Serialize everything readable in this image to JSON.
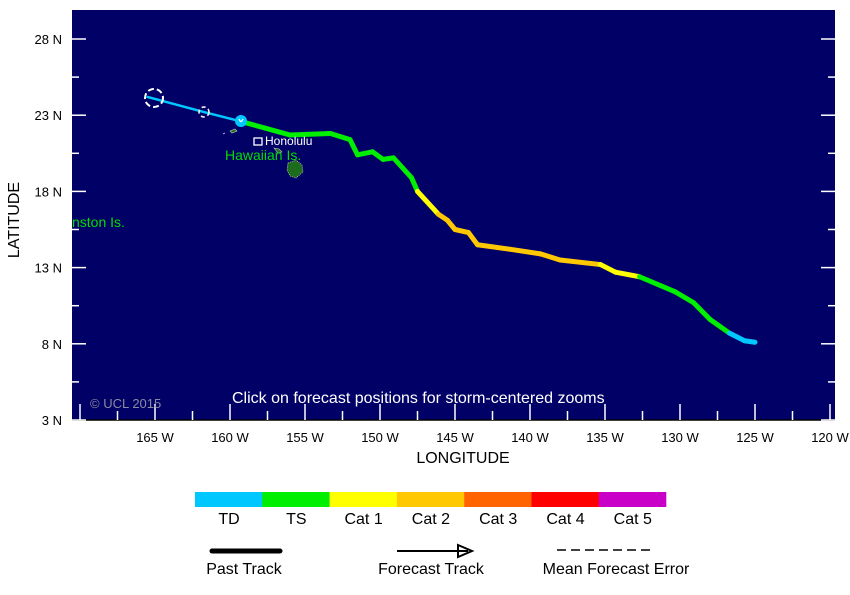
{
  "map": {
    "copyright": "© UCL 2015",
    "instruction": "Click on forecast positions for storm-centered zooms",
    "xlabel": "LONGITUDE",
    "ylabel": "LATITUDE",
    "lon_ticks": [
      {
        "v": 165,
        "t": "165 W"
      },
      {
        "v": 160,
        "t": "160 W"
      },
      {
        "v": 155,
        "t": "155 W"
      },
      {
        "v": 150,
        "t": "150 W"
      },
      {
        "v": 145,
        "t": "145 W"
      },
      {
        "v": 140,
        "t": "140 W"
      },
      {
        "v": 135,
        "t": "135 W"
      },
      {
        "v": 130,
        "t": "130 W"
      },
      {
        "v": 125,
        "t": "125 W"
      },
      {
        "v": 120,
        "t": "120 W"
      }
    ],
    "lat_ticks": [
      {
        "v": 28,
        "t": "28 N"
      },
      {
        "v": 23,
        "t": "23 N"
      },
      {
        "v": 18,
        "t": "18 N"
      },
      {
        "v": 13,
        "t": "13 N"
      },
      {
        "v": 8,
        "t": "8 N"
      },
      {
        "v": 3,
        "t": "3 N"
      }
    ],
    "labels": {
      "honolulu": "Honolulu",
      "hawaiian": "Hawaiian Is.",
      "johnston": "nston Is."
    },
    "colors": {
      "ocean": "#000066",
      "TD": "#00c8ff",
      "TS": "#00ee00",
      "Cat1": "#ffff00",
      "Cat2": "#ffc800",
      "Cat3": "#ff6400",
      "Cat4": "#ff0000",
      "Cat5": "#c800c8",
      "land_label": "#00dd00"
    },
    "track": [
      {
        "lon": 165.5,
        "lat": 24.2,
        "cat": "TD"
      },
      {
        "lon": 161.7,
        "lat": 23.2,
        "cat": "TD"
      },
      {
        "lon": 159.3,
        "lat": 22.6,
        "cat": "TD"
      },
      {
        "lon": 156.0,
        "lat": 21.7,
        "cat": "TS"
      },
      {
        "lon": 153.3,
        "lat": 21.8,
        "cat": "TS"
      },
      {
        "lon": 152.0,
        "lat": 21.4,
        "cat": "TS"
      },
      {
        "lon": 151.5,
        "lat": 20.4,
        "cat": "TS"
      },
      {
        "lon": 150.5,
        "lat": 20.6,
        "cat": "TS"
      },
      {
        "lon": 149.8,
        "lat": 20.1,
        "cat": "TS"
      },
      {
        "lon": 149.1,
        "lat": 20.2,
        "cat": "TS"
      },
      {
        "lon": 147.9,
        "lat": 18.9,
        "cat": "TS"
      },
      {
        "lon": 147.5,
        "lat": 18.0,
        "cat": "TS"
      },
      {
        "lon": 146.1,
        "lat": 16.5,
        "cat": "Cat1"
      },
      {
        "lon": 145.5,
        "lat": 16.1,
        "cat": "Cat2"
      },
      {
        "lon": 145.0,
        "lat": 15.5,
        "cat": "Cat2"
      },
      {
        "lon": 144.1,
        "lat": 15.3,
        "cat": "Cat2"
      },
      {
        "lon": 143.5,
        "lat": 14.5,
        "cat": "Cat2"
      },
      {
        "lon": 141.3,
        "lat": 14.2,
        "cat": "Cat2"
      },
      {
        "lon": 139.3,
        "lat": 13.9,
        "cat": "Cat2"
      },
      {
        "lon": 138.0,
        "lat": 13.5,
        "cat": "Cat2"
      },
      {
        "lon": 135.3,
        "lat": 13.2,
        "cat": "Cat2"
      },
      {
        "lon": 134.3,
        "lat": 12.7,
        "cat": "Cat1"
      },
      {
        "lon": 132.7,
        "lat": 12.4,
        "cat": "Cat1"
      },
      {
        "lon": 130.3,
        "lat": 11.4,
        "cat": "TS"
      },
      {
        "lon": 129.1,
        "lat": 10.7,
        "cat": "TS"
      },
      {
        "lon": 128.0,
        "lat": 9.6,
        "cat": "TS"
      },
      {
        "lon": 126.7,
        "lat": 8.7,
        "cat": "TS"
      },
      {
        "lon": 125.7,
        "lat": 8.2,
        "cat": "TD"
      },
      {
        "lon": 125.0,
        "lat": 8.1,
        "cat": "TD"
      }
    ]
  },
  "legend": {
    "categories": [
      {
        "key": "TD",
        "label": "TD"
      },
      {
        "key": "TS",
        "label": "TS"
      },
      {
        "key": "Cat1",
        "label": "Cat 1"
      },
      {
        "key": "Cat2",
        "label": "Cat 2"
      },
      {
        "key": "Cat3",
        "label": "Cat 3"
      },
      {
        "key": "Cat4",
        "label": "Cat 4"
      },
      {
        "key": "Cat5",
        "label": "Cat 5"
      }
    ],
    "past_track": "Past Track",
    "forecast_track": "Forecast Track",
    "mean_error": "Mean Forecast Error"
  }
}
